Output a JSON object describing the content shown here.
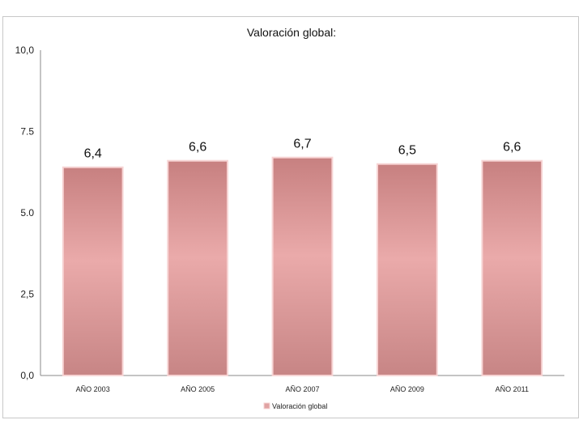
{
  "chart_data": {
    "type": "bar",
    "title": "Valoración global:",
    "categories": [
      "AÑO 2003",
      "AÑO 2005",
      "AÑO 2007",
      "AÑO 2009",
      "AÑO 2011"
    ],
    "series": [
      {
        "name": "Valoración global",
        "values": [
          6.4,
          6.6,
          6.7,
          6.5,
          6.6
        ]
      }
    ],
    "data_labels": [
      "6,4",
      "6,6",
      "6,7",
      "6,5",
      "6,6"
    ],
    "y_ticks": [
      "0,0",
      "2,5",
      "5.0",
      "7.5",
      "10,0"
    ],
    "ylim": [
      0,
      10
    ],
    "xlabel": "",
    "ylabel": "",
    "grid": false,
    "legend_position": "bottom",
    "bar_color": "#e0a3a3",
    "bar_edge_color": "#f7d4d4"
  }
}
